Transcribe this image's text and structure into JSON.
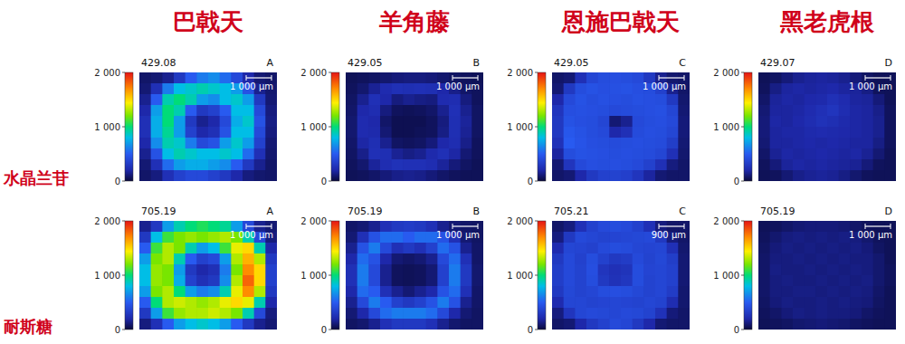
{
  "column_titles": [
    "巴戟天",
    "羊角藤",
    "恩施巴戟天",
    "黑老虎根"
  ],
  "row_titles": [
    "水晶兰苷",
    "耐斯糖"
  ],
  "chart_data": [
    {
      "type": "heatmap",
      "title": "429.08",
      "panel_label": "A",
      "scale_bar": "1 000 μm",
      "tick_labels": false,
      "color_range": [
        0,
        2000
      ],
      "color_ticks": [
        {
          "value": 0,
          "label": "0"
        },
        {
          "value": 1000,
          "label": "1 000"
        },
        {
          "value": 2000,
          "label": "2 000"
        }
      ],
      "cells": [
        [
          80,
          100,
          150,
          300,
          500,
          600,
          650,
          550,
          400,
          200,
          100,
          80
        ],
        [
          100,
          250,
          600,
          800,
          850,
          900,
          850,
          800,
          700,
          450,
          150,
          90
        ],
        [
          150,
          500,
          900,
          1000,
          900,
          700,
          650,
          800,
          850,
          700,
          300,
          100
        ],
        [
          200,
          700,
          1000,
          900,
          500,
          300,
          350,
          500,
          800,
          800,
          400,
          120
        ],
        [
          250,
          750,
          1000,
          700,
          300,
          150,
          200,
          400,
          750,
          850,
          450,
          130
        ],
        [
          250,
          750,
          950,
          700,
          350,
          200,
          250,
          450,
          800,
          800,
          400,
          120
        ],
        [
          200,
          650,
          900,
          850,
          600,
          400,
          450,
          700,
          850,
          700,
          350,
          100
        ],
        [
          150,
          450,
          800,
          900,
          850,
          800,
          800,
          850,
          800,
          550,
          250,
          90
        ],
        [
          100,
          250,
          550,
          700,
          750,
          750,
          700,
          650,
          500,
          300,
          150,
          80
        ],
        [
          80,
          120,
          250,
          350,
          400,
          400,
          350,
          300,
          200,
          120,
          90,
          80
        ]
      ]
    },
    {
      "type": "heatmap",
      "title": "429.05",
      "panel_label": "B",
      "scale_bar": "1 000 μm",
      "tick_labels": false,
      "color_range": [
        0,
        2000
      ],
      "color_ticks": [
        {
          "value": 0,
          "label": "0"
        },
        {
          "value": 1000,
          "label": "1 000"
        },
        {
          "value": 2000,
          "label": "2 000"
        }
      ],
      "cells": [
        [
          50,
          60,
          70,
          90,
          110,
          120,
          120,
          110,
          90,
          70,
          60,
          50
        ],
        [
          60,
          90,
          160,
          220,
          250,
          240,
          250,
          240,
          200,
          140,
          80,
          60
        ],
        [
          70,
          150,
          250,
          200,
          120,
          150,
          130,
          120,
          220,
          230,
          120,
          60
        ],
        [
          80,
          200,
          230,
          120,
          60,
          50,
          60,
          80,
          150,
          250,
          150,
          70
        ],
        [
          90,
          220,
          200,
          80,
          40,
          40,
          40,
          60,
          120,
          240,
          170,
          70
        ],
        [
          90,
          220,
          210,
          100,
          40,
          40,
          50,
          60,
          130,
          240,
          160,
          70
        ],
        [
          80,
          190,
          240,
          150,
          70,
          60,
          70,
          110,
          200,
          230,
          140,
          60
        ],
        [
          70,
          140,
          250,
          240,
          160,
          130,
          150,
          210,
          250,
          190,
          100,
          60
        ],
        [
          60,
          90,
          170,
          230,
          260,
          250,
          250,
          230,
          170,
          110,
          70,
          50
        ],
        [
          50,
          60,
          80,
          110,
          140,
          150,
          140,
          110,
          80,
          60,
          50,
          50
        ]
      ]
    },
    {
      "type": "heatmap",
      "title": "429.05",
      "panel_label": "C",
      "scale_bar": "1 000 μm",
      "tick_labels": false,
      "color_range": [
        0,
        2000
      ],
      "color_ticks": [
        {
          "value": 0,
          "label": "0"
        },
        {
          "value": 1000,
          "label": "1 000"
        },
        {
          "value": 2000,
          "label": "2 000"
        }
      ],
      "cells": [
        [
          80,
          100,
          250,
          380,
          420,
          430,
          420,
          400,
          300,
          150,
          90,
          80
        ],
        [
          100,
          300,
          420,
          450,
          430,
          440,
          450,
          430,
          420,
          350,
          150,
          80
        ],
        [
          200,
          400,
          450,
          420,
          440,
          430,
          420,
          440,
          430,
          420,
          300,
          90
        ],
        [
          280,
          430,
          440,
          430,
          420,
          400,
          410,
          420,
          430,
          440,
          380,
          100
        ],
        [
          300,
          450,
          430,
          420,
          380,
          100,
          150,
          400,
          420,
          430,
          400,
          110
        ],
        [
          300,
          480,
          450,
          420,
          400,
          200,
          250,
          410,
          430,
          420,
          380,
          110
        ],
        [
          260,
          500,
          460,
          430,
          420,
          410,
          420,
          430,
          420,
          410,
          330,
          100
        ],
        [
          180,
          420,
          450,
          440,
          430,
          420,
          430,
          420,
          410,
          380,
          250,
          90
        ],
        [
          100,
          280,
          400,
          430,
          420,
          430,
          420,
          400,
          350,
          250,
          120,
          80
        ],
        [
          80,
          100,
          200,
          300,
          350,
          360,
          340,
          280,
          180,
          100,
          80,
          80
        ]
      ]
    },
    {
      "type": "heatmap",
      "title": "429.07",
      "panel_label": "D",
      "scale_bar": "1 000 μm",
      "tick_labels": false,
      "color_range": [
        0,
        2000
      ],
      "color_ticks": [
        {
          "value": 0,
          "label": "0"
        },
        {
          "value": 1000,
          "label": "1 000"
        },
        {
          "value": 2000,
          "label": "2 000"
        }
      ],
      "cells": [
        [
          50,
          70,
          110,
          150,
          170,
          180,
          170,
          150,
          110,
          70,
          50,
          50
        ],
        [
          60,
          130,
          180,
          190,
          180,
          190,
          200,
          180,
          170,
          130,
          60,
          50
        ],
        [
          80,
          170,
          190,
          180,
          200,
          210,
          250,
          220,
          180,
          170,
          110,
          50
        ],
        [
          100,
          180,
          180,
          190,
          220,
          250,
          280,
          230,
          190,
          180,
          140,
          60
        ],
        [
          110,
          190,
          180,
          200,
          230,
          260,
          240,
          210,
          190,
          180,
          150,
          60
        ],
        [
          110,
          180,
          190,
          190,
          210,
          220,
          210,
          200,
          190,
          180,
          150,
          60
        ],
        [
          100,
          180,
          180,
          190,
          200,
          190,
          200,
          190,
          180,
          180,
          130,
          60
        ],
        [
          80,
          160,
          190,
          180,
          190,
          200,
          190,
          180,
          190,
          160,
          100,
          50
        ],
        [
          60,
          110,
          170,
          190,
          180,
          190,
          180,
          170,
          160,
          110,
          60,
          50
        ],
        [
          50,
          60,
          100,
          140,
          160,
          170,
          160,
          130,
          90,
          60,
          50,
          50
        ]
      ]
    },
    {
      "type": "heatmap",
      "title": "705.19",
      "panel_label": "A",
      "scale_bar": "1 000 μm",
      "tick_labels": false,
      "color_range": [
        0,
        2000
      ],
      "color_ticks": [
        {
          "value": 0,
          "label": "0"
        },
        {
          "value": 1000,
          "label": "1 000"
        },
        {
          "value": 2000,
          "label": "2 000"
        }
      ],
      "cells": [
        [
          150,
          300,
          700,
          900,
          1000,
          1050,
          1000,
          950,
          700,
          400,
          150,
          100
        ],
        [
          300,
          800,
          1100,
          1200,
          1250,
          1200,
          1250,
          1300,
          1200,
          900,
          400,
          120
        ],
        [
          500,
          1100,
          1300,
          1200,
          900,
          700,
          800,
          1100,
          1400,
          1500,
          900,
          200
        ],
        [
          700,
          1200,
          1300,
          900,
          500,
          350,
          400,
          700,
          1300,
          1600,
          1300,
          300
        ],
        [
          800,
          1250,
          1200,
          700,
          300,
          200,
          250,
          600,
          1200,
          1700,
          1500,
          350
        ],
        [
          800,
          1250,
          1200,
          750,
          350,
          250,
          300,
          650,
          1300,
          1800,
          1500,
          350
        ],
        [
          700,
          1200,
          1300,
          1000,
          700,
          600,
          650,
          900,
          1400,
          1700,
          1300,
          300
        ],
        [
          500,
          1000,
          1300,
          1350,
          1300,
          1250,
          1300,
          1400,
          1500,
          1400,
          900,
          200
        ],
        [
          300,
          700,
          1100,
          1250,
          1300,
          1300,
          1350,
          1300,
          1200,
          900,
          400,
          120
        ],
        [
          120,
          250,
          500,
          700,
          800,
          850,
          800,
          700,
          500,
          300,
          150,
          100
        ]
      ]
    },
    {
      "type": "heatmap",
      "title": "705.19",
      "panel_label": "B",
      "scale_bar": "1 000 μm",
      "tick_labels": false,
      "color_range": [
        0,
        2000
      ],
      "color_ticks": [
        {
          "value": 0,
          "label": "0"
        },
        {
          "value": 1000,
          "label": "1 000"
        },
        {
          "value": 2000,
          "label": "2 000"
        }
      ],
      "cells": [
        [
          80,
          100,
          150,
          250,
          300,
          320,
          300,
          250,
          150,
          100,
          80,
          70
        ],
        [
          100,
          250,
          450,
          550,
          550,
          500,
          550,
          550,
          450,
          250,
          100,
          70
        ],
        [
          150,
          450,
          600,
          400,
          250,
          300,
          250,
          350,
          550,
          450,
          150,
          80
        ],
        [
          200,
          550,
          450,
          200,
          100,
          80,
          100,
          150,
          400,
          550,
          250,
          80
        ],
        [
          250,
          600,
          400,
          150,
          60,
          50,
          60,
          100,
          350,
          600,
          300,
          90
        ],
        [
          250,
          600,
          400,
          150,
          60,
          50,
          60,
          100,
          350,
          600,
          300,
          90
        ],
        [
          200,
          550,
          500,
          250,
          150,
          100,
          150,
          200,
          450,
          550,
          250,
          80
        ],
        [
          150,
          400,
          600,
          500,
          350,
          300,
          350,
          450,
          600,
          450,
          150,
          80
        ],
        [
          100,
          200,
          400,
          550,
          600,
          600,
          600,
          550,
          400,
          200,
          100,
          70
        ],
        [
          70,
          90,
          150,
          250,
          300,
          300,
          300,
          250,
          150,
          90,
          70,
          70
        ]
      ]
    },
    {
      "type": "heatmap",
      "title": "705.21",
      "panel_label": "C",
      "scale_bar": "900 μm",
      "tick_labels": false,
      "color_range": [
        0,
        2000
      ],
      "color_ticks": [
        {
          "value": 0,
          "label": "0"
        },
        {
          "value": 1000,
          "label": "1 000"
        },
        {
          "value": 2000,
          "label": "2 000"
        }
      ],
      "cells": [
        [
          80,
          120,
          250,
          350,
          400,
          420,
          400,
          350,
          250,
          120,
          80,
          80
        ],
        [
          120,
          300,
          400,
          380,
          360,
          370,
          380,
          390,
          400,
          300,
          120,
          80
        ],
        [
          220,
          380,
          370,
          350,
          400,
          420,
          410,
          380,
          370,
          380,
          250,
          90
        ],
        [
          300,
          400,
          350,
          420,
          350,
          300,
          320,
          400,
          360,
          390,
          330,
          100
        ],
        [
          330,
          400,
          360,
          430,
          280,
          250,
          270,
          420,
          370,
          380,
          350,
          100
        ],
        [
          330,
          400,
          360,
          420,
          300,
          260,
          290,
          420,
          360,
          380,
          350,
          100
        ],
        [
          300,
          390,
          360,
          380,
          420,
          430,
          420,
          390,
          360,
          380,
          320,
          90
        ],
        [
          220,
          380,
          380,
          360,
          370,
          380,
          370,
          360,
          380,
          360,
          230,
          90
        ],
        [
          120,
          280,
          380,
          400,
          390,
          380,
          400,
          390,
          360,
          260,
          110,
          80
        ],
        [
          80,
          100,
          200,
          300,
          350,
          400,
          380,
          300,
          200,
          100,
          80,
          80
        ]
      ]
    },
    {
      "type": "heatmap",
      "title": "705.19",
      "panel_label": "D",
      "scale_bar": "1 000 μm",
      "tick_labels": false,
      "color_range": [
        0,
        2000
      ],
      "color_ticks": [
        {
          "value": 0,
          "label": "0"
        },
        {
          "value": 1000,
          "label": "1 000"
        },
        {
          "value": 2000,
          "label": "2 000"
        }
      ],
      "cells": [
        [
          50,
          60,
          80,
          100,
          110,
          110,
          110,
          100,
          80,
          60,
          50,
          50
        ],
        [
          60,
          90,
          120,
          130,
          120,
          130,
          120,
          130,
          120,
          90,
          60,
          50
        ],
        [
          70,
          110,
          130,
          120,
          130,
          120,
          130,
          120,
          130,
          110,
          70,
          50
        ],
        [
          80,
          120,
          120,
          130,
          120,
          130,
          120,
          130,
          120,
          120,
          90,
          50
        ],
        [
          80,
          130,
          120,
          120,
          130,
          120,
          130,
          120,
          130,
          120,
          90,
          60
        ],
        [
          80,
          120,
          130,
          120,
          120,
          130,
          120,
          130,
          120,
          130,
          90,
          60
        ],
        [
          80,
          120,
          120,
          130,
          130,
          120,
          130,
          120,
          130,
          120,
          80,
          50
        ],
        [
          70,
          110,
          130,
          120,
          120,
          130,
          120,
          130,
          120,
          110,
          70,
          50
        ],
        [
          60,
          80,
          110,
          130,
          120,
          130,
          120,
          120,
          110,
          80,
          60,
          50
        ],
        [
          50,
          60,
          70,
          90,
          100,
          110,
          100,
          90,
          70,
          60,
          50,
          50
        ]
      ]
    }
  ]
}
